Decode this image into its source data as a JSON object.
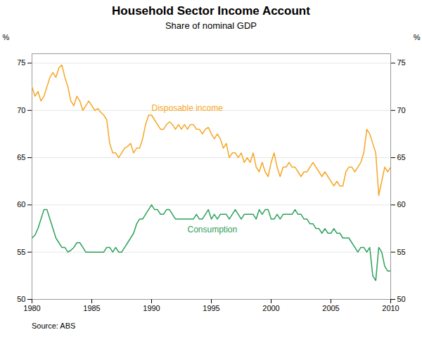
{
  "chart_data": {
    "type": "line",
    "title": "Household Sector Income Account",
    "subtitle": "Share of nominal GDP",
    "source": "Source: ABS",
    "ylabel": "%",
    "y2label": "%",
    "xlim": [
      1980,
      2010
    ],
    "xticks": [
      1980,
      1985,
      1990,
      1995,
      2000,
      2005,
      2010
    ],
    "ylim": [
      50,
      76
    ],
    "yticks": [
      50,
      55,
      60,
      65,
      70,
      75
    ],
    "y2lim": [
      50,
      76
    ],
    "y2ticks": [
      50,
      55,
      60,
      65,
      70,
      75
    ],
    "grid": true,
    "x": [
      1980.0,
      1980.25,
      1980.5,
      1980.75,
      1981.0,
      1981.25,
      1981.5,
      1981.75,
      1982.0,
      1982.25,
      1982.5,
      1982.75,
      1983.0,
      1983.25,
      1983.5,
      1983.75,
      1984.0,
      1984.25,
      1984.5,
      1984.75,
      1985.0,
      1985.25,
      1985.5,
      1985.75,
      1986.0,
      1986.25,
      1986.5,
      1986.75,
      1987.0,
      1987.25,
      1987.5,
      1987.75,
      1988.0,
      1988.25,
      1988.5,
      1988.75,
      1989.0,
      1989.25,
      1989.5,
      1989.75,
      1990.0,
      1990.25,
      1990.5,
      1990.75,
      1991.0,
      1991.25,
      1991.5,
      1991.75,
      1992.0,
      1992.25,
      1992.5,
      1992.75,
      1993.0,
      1993.25,
      1993.5,
      1993.75,
      1994.0,
      1994.25,
      1994.5,
      1994.75,
      1995.0,
      1995.25,
      1995.5,
      1995.75,
      1996.0,
      1996.25,
      1996.5,
      1996.75,
      1997.0,
      1997.25,
      1997.5,
      1997.75,
      1998.0,
      1998.25,
      1998.5,
      1998.75,
      1999.0,
      1999.25,
      1999.5,
      1999.75,
      2000.0,
      2000.25,
      2000.5,
      2000.75,
      2001.0,
      2001.25,
      2001.5,
      2001.75,
      2002.0,
      2002.25,
      2002.5,
      2002.75,
      2003.0,
      2003.25,
      2003.5,
      2003.75,
      2004.0,
      2004.25,
      2004.5,
      2004.75,
      2005.0,
      2005.25,
      2005.5,
      2005.75,
      2006.0,
      2006.25,
      2006.5,
      2006.75,
      2007.0,
      2007.25,
      2007.5,
      2007.75,
      2008.0,
      2008.25,
      2008.5,
      2008.75,
      2009.0,
      2009.25,
      2009.5,
      2009.75,
      2010.0
    ],
    "series": [
      {
        "name": "Disposable income",
        "color": "#F5A623",
        "values": [
          72.5,
          71.5,
          72.0,
          71.0,
          71.5,
          72.5,
          73.5,
          74.0,
          73.5,
          74.5,
          74.8,
          73.5,
          72.5,
          71.0,
          70.5,
          71.5,
          71.0,
          70.0,
          70.5,
          71.0,
          70.5,
          70.0,
          70.2,
          69.8,
          69.5,
          69.0,
          66.5,
          65.5,
          65.5,
          65.0,
          65.5,
          66.0,
          66.2,
          66.5,
          65.5,
          66.0,
          66.0,
          67.0,
          68.5,
          69.5,
          69.5,
          69.0,
          68.5,
          68.0,
          68.0,
          68.5,
          68.8,
          68.5,
          68.0,
          68.5,
          68.0,
          68.5,
          68.0,
          68.5,
          68.5,
          68.0,
          68.0,
          67.5,
          68.0,
          68.2,
          67.5,
          67.0,
          67.5,
          67.0,
          66.0,
          66.5,
          65.0,
          65.5,
          65.5,
          65.0,
          65.5,
          64.5,
          65.0,
          64.5,
          65.5,
          64.0,
          63.5,
          64.5,
          63.5,
          63.0,
          64.5,
          65.5,
          64.0,
          63.0,
          64.0,
          64.0,
          64.5,
          64.0,
          64.0,
          63.5,
          63.0,
          63.5,
          63.5,
          64.0,
          64.5,
          64.0,
          63.5,
          63.0,
          63.5,
          63.0,
          62.5,
          62.0,
          62.5,
          62.0,
          62.0,
          63.5,
          64.0,
          64.0,
          63.5,
          64.0,
          64.5,
          65.5,
          68.0,
          67.5,
          66.5,
          65.5,
          61.0,
          62.5,
          64.0,
          63.5,
          64.0
        ]
      },
      {
        "name": "Consumption",
        "color": "#2CA05A",
        "values": [
          56.5,
          56.8,
          57.5,
          58.5,
          59.5,
          59.5,
          58.5,
          57.5,
          56.5,
          56.0,
          55.5,
          55.5,
          55.0,
          55.2,
          55.5,
          56.0,
          56.0,
          55.5,
          55.0,
          55.0,
          55.0,
          55.0,
          55.0,
          55.0,
          55.0,
          55.5,
          55.5,
          55.0,
          55.5,
          55.0,
          55.0,
          55.5,
          56.0,
          56.5,
          57.0,
          58.0,
          58.5,
          58.5,
          59.0,
          59.5,
          60.0,
          59.5,
          59.5,
          59.0,
          59.0,
          59.5,
          59.5,
          59.0,
          58.5,
          58.5,
          58.5,
          58.5,
          58.5,
          58.5,
          58.5,
          59.0,
          58.5,
          58.5,
          59.0,
          59.5,
          58.5,
          59.0,
          58.5,
          59.0,
          59.0,
          59.0,
          58.5,
          59.0,
          59.5,
          59.0,
          58.5,
          59.0,
          59.0,
          59.0,
          59.0,
          58.5,
          59.5,
          59.0,
          59.5,
          59.5,
          58.5,
          58.5,
          59.0,
          58.5,
          59.0,
          59.0,
          59.0,
          59.0,
          59.5,
          59.0,
          59.0,
          58.5,
          58.5,
          58.0,
          58.0,
          57.5,
          57.5,
          57.0,
          57.5,
          57.0,
          57.0,
          57.5,
          57.0,
          57.0,
          56.5,
          56.5,
          56.5,
          56.0,
          55.5,
          55.0,
          55.5,
          55.5,
          55.0,
          55.5,
          52.5,
          52.0,
          55.5,
          55.0,
          53.5,
          53.0,
          53.0
        ]
      }
    ]
  }
}
